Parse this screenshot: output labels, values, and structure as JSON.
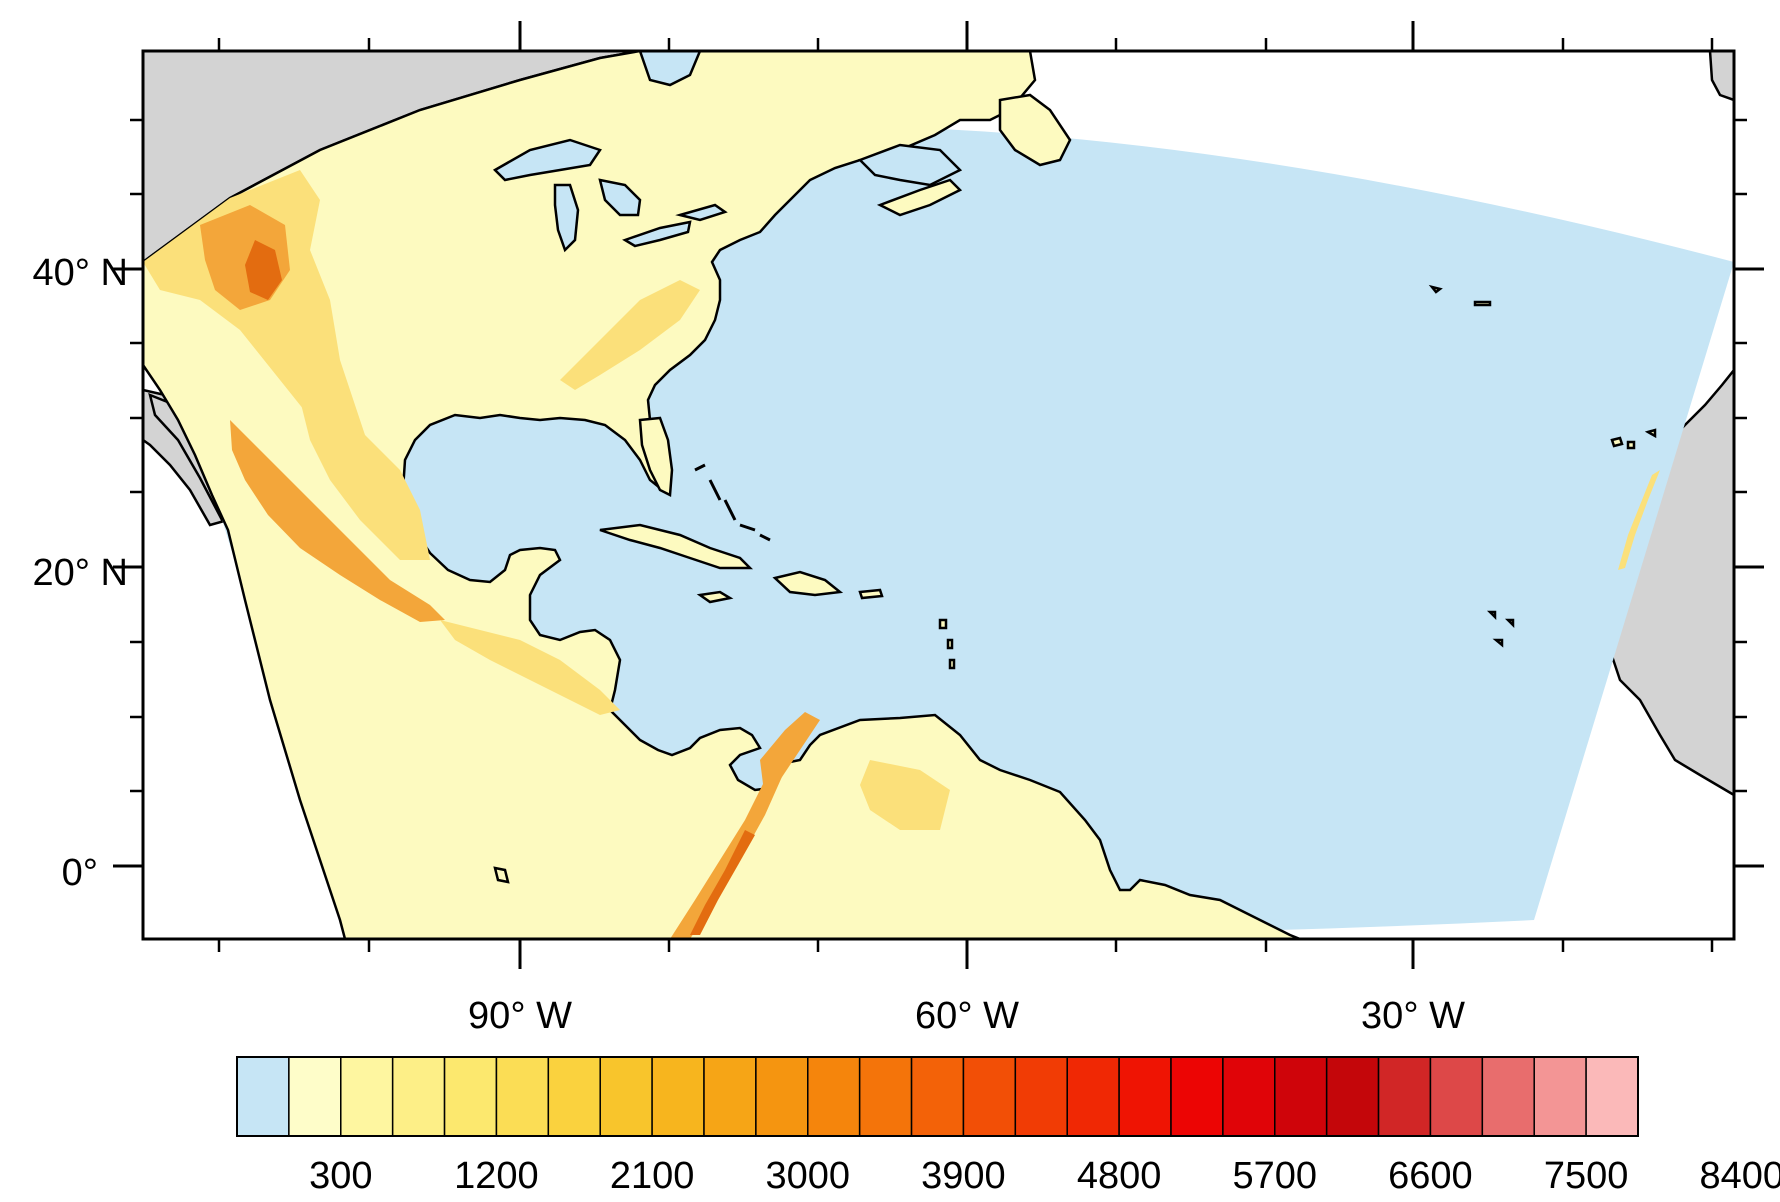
{
  "map": {
    "projection": "lambert-conformal-domain",
    "lat_labels": [
      {
        "id": "40n",
        "text": "40° N"
      },
      {
        "id": "20n",
        "text": "20° N"
      },
      {
        "id": "0",
        "text": "0°"
      }
    ],
    "lon_labels": [
      {
        "id": "90w",
        "text": "90° W"
      },
      {
        "id": "60w",
        "text": "60° W"
      },
      {
        "id": "30w",
        "text": "30° W"
      }
    ],
    "colors": {
      "ocean": "#c6e5f5",
      "outside_land": "#d3d3d3",
      "land_low": "#fdfac0",
      "land_mid": "#fbe07a",
      "land_high": "#f3a63a",
      "land_peak": "#e36c10",
      "coastline": "#000000"
    }
  },
  "colorbar": {
    "labels": [
      "300",
      "1200",
      "2100",
      "3000",
      "3900",
      "4800",
      "5700",
      "6600",
      "7500",
      "8400"
    ],
    "colors": [
      "#c6e5f5",
      "#fefdc9",
      "#fef6a0",
      "#fdef87",
      "#fce86e",
      "#fbdd55",
      "#fad23e",
      "#f8c52c",
      "#f7b51e",
      "#f6a516",
      "#f59510",
      "#f5850c",
      "#f4740a",
      "#f36208",
      "#f24f06",
      "#f13c05",
      "#f02804",
      "#ef1403",
      "#ec0504",
      "#e00408",
      "#cf040a",
      "#c4060a",
      "#d12626",
      "#dd4848",
      "#e86d6d",
      "#f39595",
      "#fbb9b9"
    ]
  }
}
